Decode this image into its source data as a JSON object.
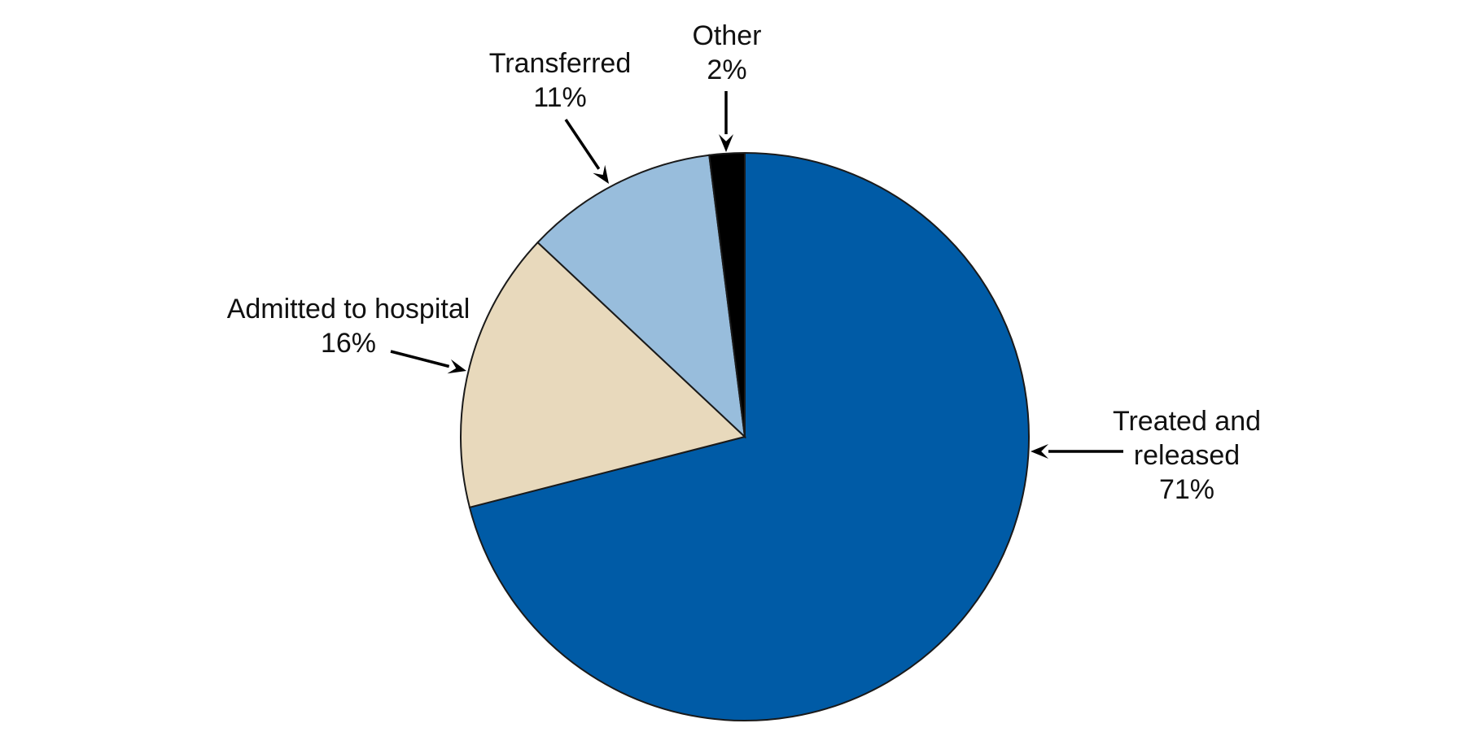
{
  "chart_data": {
    "type": "pie",
    "title": "",
    "slices": [
      {
        "name": "Treated and released",
        "label_lines": [
          "Treated and",
          "released"
        ],
        "value": 71,
        "value_label": "71%",
        "color": "#005BA6"
      },
      {
        "name": "Admitted to hospital",
        "label_lines": [
          "Admitted to hospital"
        ],
        "value": 16,
        "value_label": "16%",
        "color": "#E8D9BC"
      },
      {
        "name": "Transferred",
        "label_lines": [
          "Transferred"
        ],
        "value": 11,
        "value_label": "11%",
        "color": "#98BDDC"
      },
      {
        "name": "Other",
        "label_lines": [
          "Other"
        ],
        "value": 2,
        "value_label": "2%",
        "color": "#000000"
      }
    ],
    "legend": "none",
    "labels": "outside-with-arrows"
  }
}
